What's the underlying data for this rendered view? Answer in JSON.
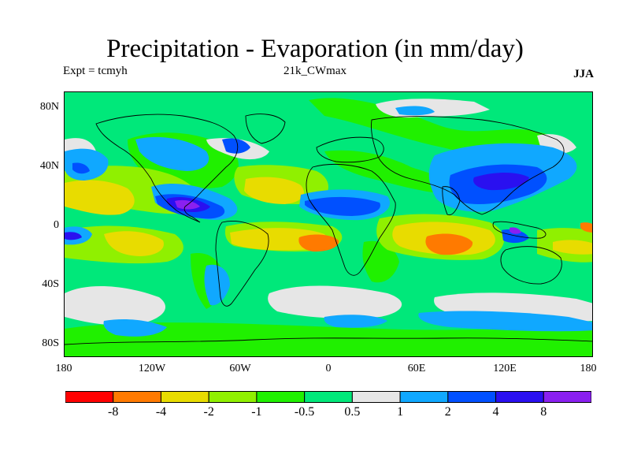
{
  "title": "Precipitation - Evaporation (in mm/day)",
  "experiment": "Expt = tcmyh",
  "run": "21k_CWmax",
  "season": "JJA",
  "lat_labels": [
    "80N",
    "40N",
    "0",
    "40S",
    "80S"
  ],
  "lon_labels": [
    "180",
    "120W",
    "60W",
    "0",
    "60E",
    "120E",
    "180"
  ],
  "colorbar": {
    "labels": [
      "-8",
      "-4",
      "-2",
      "-1",
      "-0.5",
      "0.5",
      "1",
      "2",
      "4",
      "8"
    ],
    "colors": [
      "#ff0000",
      "#ff7a00",
      "#e8dc00",
      "#90f000",
      "#20f000",
      "#00e87a",
      "#e6e6e6",
      "#10a8ff",
      "#0050ff",
      "#2a10f0",
      "#8a20f0"
    ]
  },
  "colors": {
    "ocean_base": "#00e87a",
    "land_green": "#20f000",
    "lime": "#90f000",
    "yellow": "#e8dc00",
    "orange": "#ff7a00",
    "grey": "#e6e6e6",
    "light_blue": "#10a8ff",
    "blue": "#0050ff",
    "deep_blue": "#2a10f0",
    "purple": "#8a20f0",
    "coast": "#000000"
  }
}
